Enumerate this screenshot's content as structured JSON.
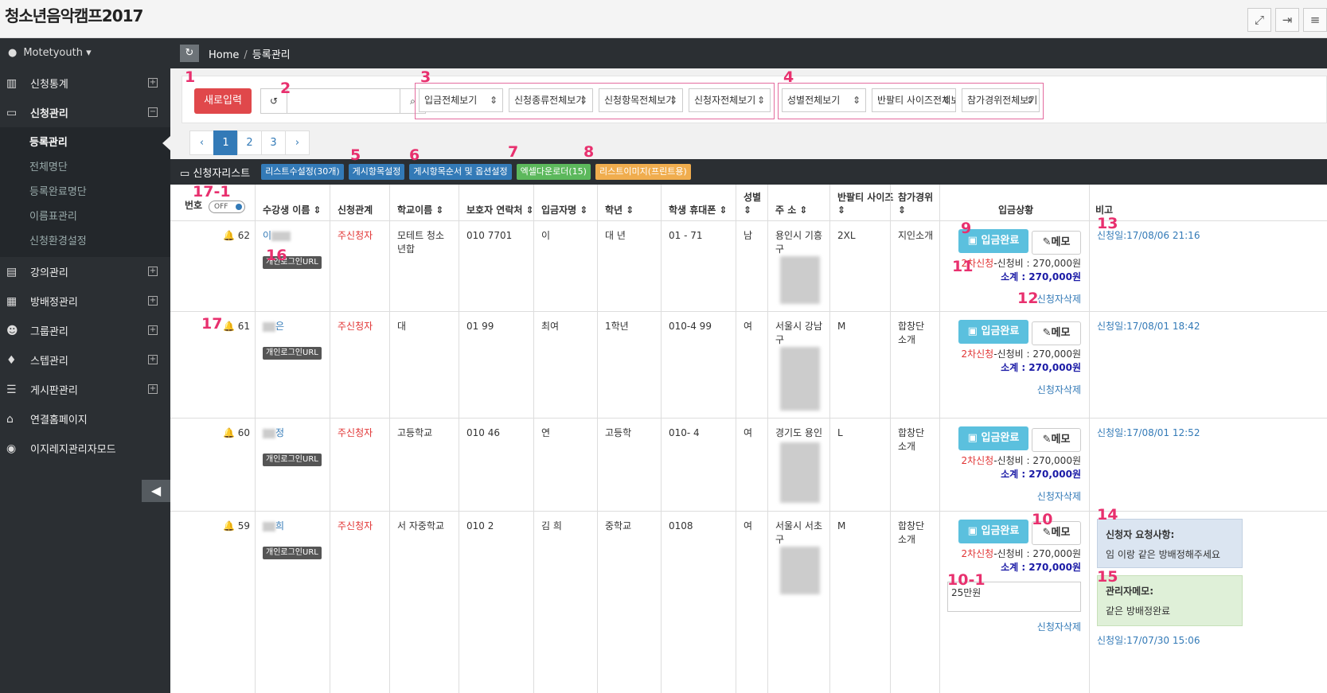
{
  "app": {
    "title": "청소년음악캠프2017"
  },
  "top_icons": [
    "expand-icon",
    "logout-icon",
    "menu-icon"
  ],
  "sidebar": {
    "user": "Motetyouth",
    "menu": [
      {
        "label": "신청통계",
        "icon": "bar-chart-icon"
      },
      {
        "label": "신청관리",
        "icon": "inbox-icon",
        "expanded": true
      },
      {
        "label": "강의관리",
        "icon": "book-icon"
      },
      {
        "label": "방배정관리",
        "icon": "building-icon"
      },
      {
        "label": "그룹관리",
        "icon": "users-icon"
      },
      {
        "label": "스텝관리",
        "icon": "thumbs-up-icon"
      },
      {
        "label": "게시판관리",
        "icon": "list-icon"
      },
      {
        "label": "연결홈페이지",
        "icon": "home-icon"
      },
      {
        "label": "이지레지관리자모드",
        "icon": "dashboard-icon"
      }
    ],
    "submenu": [
      "등록관리",
      "전체명단",
      "등록완료명단",
      "이름표관리",
      "신청환경설정"
    ]
  },
  "breadcrumb": {
    "home": "Home",
    "current": "등록관리"
  },
  "toolbar": {
    "new_label": "새로입력",
    "search_placeholder": "",
    "filters_a": [
      "입금전체보기",
      "신청종류전체보기",
      "신청항목전체보기",
      "신청자전체보기"
    ],
    "filters_b": [
      "성별전체보기",
      "반팔티 사이즈전체보기",
      "참가경위전체보기"
    ]
  },
  "pager": {
    "pages": [
      "1",
      "2",
      "3"
    ],
    "prev": "‹",
    "next": "›"
  },
  "list": {
    "title": "신청자리스트",
    "tags": [
      {
        "label": "리스트수설정(30개)",
        "color": "blue"
      },
      {
        "label": "게시항목설정",
        "color": "blue"
      },
      {
        "label": "게시항목순서 및 옵션설정",
        "color": "blue"
      },
      {
        "label": "엑셀다운로더(15)",
        "color": "green"
      },
      {
        "label": "리스트이미지(프린트용)",
        "color": "orange"
      }
    ]
  },
  "columns": [
    "번호",
    "수강생 이름 ⇕",
    "신청관계",
    "학교이름 ⇕",
    "보호자 연락처 ⇕",
    "입금자명 ⇕",
    "학년 ⇕",
    "학생 휴대폰 ⇕",
    "성별 ⇕",
    "주 소 ⇕",
    "반팔티 사이즈 ⇕",
    "참가경위 ⇕",
    "입금상황",
    "비고"
  ],
  "toggle_label": "OFF",
  "common": {
    "url_label": "개인로그인URL",
    "pay_label": "입금완료",
    "memo_label": "메모",
    "round": "2차신청",
    "fee_label": "-신청비 : 270,000원",
    "subtotal": "소계 : 270,000원",
    "delete": "신청자삭제"
  },
  "rows": [
    {
      "no": "62",
      "name": "이",
      "relation": "주신청자",
      "school": "모테트 청소년합",
      "guardian": "010 7701",
      "payer": "이",
      "grade": "대 년",
      "phone": "01 - 71",
      "gender": "남",
      "address": "용인시 기흥구",
      "size": "2XL",
      "route": "지인소개",
      "note": "신청일:17/08/06 21:16"
    },
    {
      "no": "61",
      "name": "은",
      "relation": "주신청자",
      "school": "대",
      "guardian": "01 99",
      "payer": "최여",
      "grade": "1학년",
      "phone": "010-4 99",
      "gender": "여",
      "address": "서울시 강남구",
      "size": "M",
      "route": "합창단 소개",
      "note": "신청일:17/08/01 18:42"
    },
    {
      "no": "60",
      "name": "정",
      "relation": "주신청자",
      "school": "고등학교",
      "guardian": "010 46",
      "payer": "연",
      "grade": "고등학",
      "phone": "010- 4",
      "gender": "여",
      "address": "경기도 용인",
      "size": "L",
      "route": "합창단 소개",
      "note": "신청일:17/08/01 12:52"
    },
    {
      "no": "59",
      "name": "희",
      "relation": "주신청자",
      "school": "서 자중학교",
      "guardian": "010 2",
      "payer": "김 희",
      "grade": "중학교",
      "phone": "0108",
      "gender": "여",
      "address": "서울시 서초구",
      "size": "M",
      "route": "합창단 소개",
      "memo": "25만원",
      "request_title": "신청자 요청사항:",
      "request": "임 이랑 같은 방배정해주세요",
      "admin_title": "관리자메모:",
      "admin": "같은 방배정완료",
      "note": "신청일:17/07/30 15:06"
    }
  ],
  "annotations": [
    "1",
    "2",
    "3",
    "4",
    "5",
    "6",
    "7",
    "8",
    "9",
    "10",
    "10-1",
    "11",
    "12",
    "13",
    "14",
    "15",
    "16",
    "17",
    "17-1"
  ]
}
